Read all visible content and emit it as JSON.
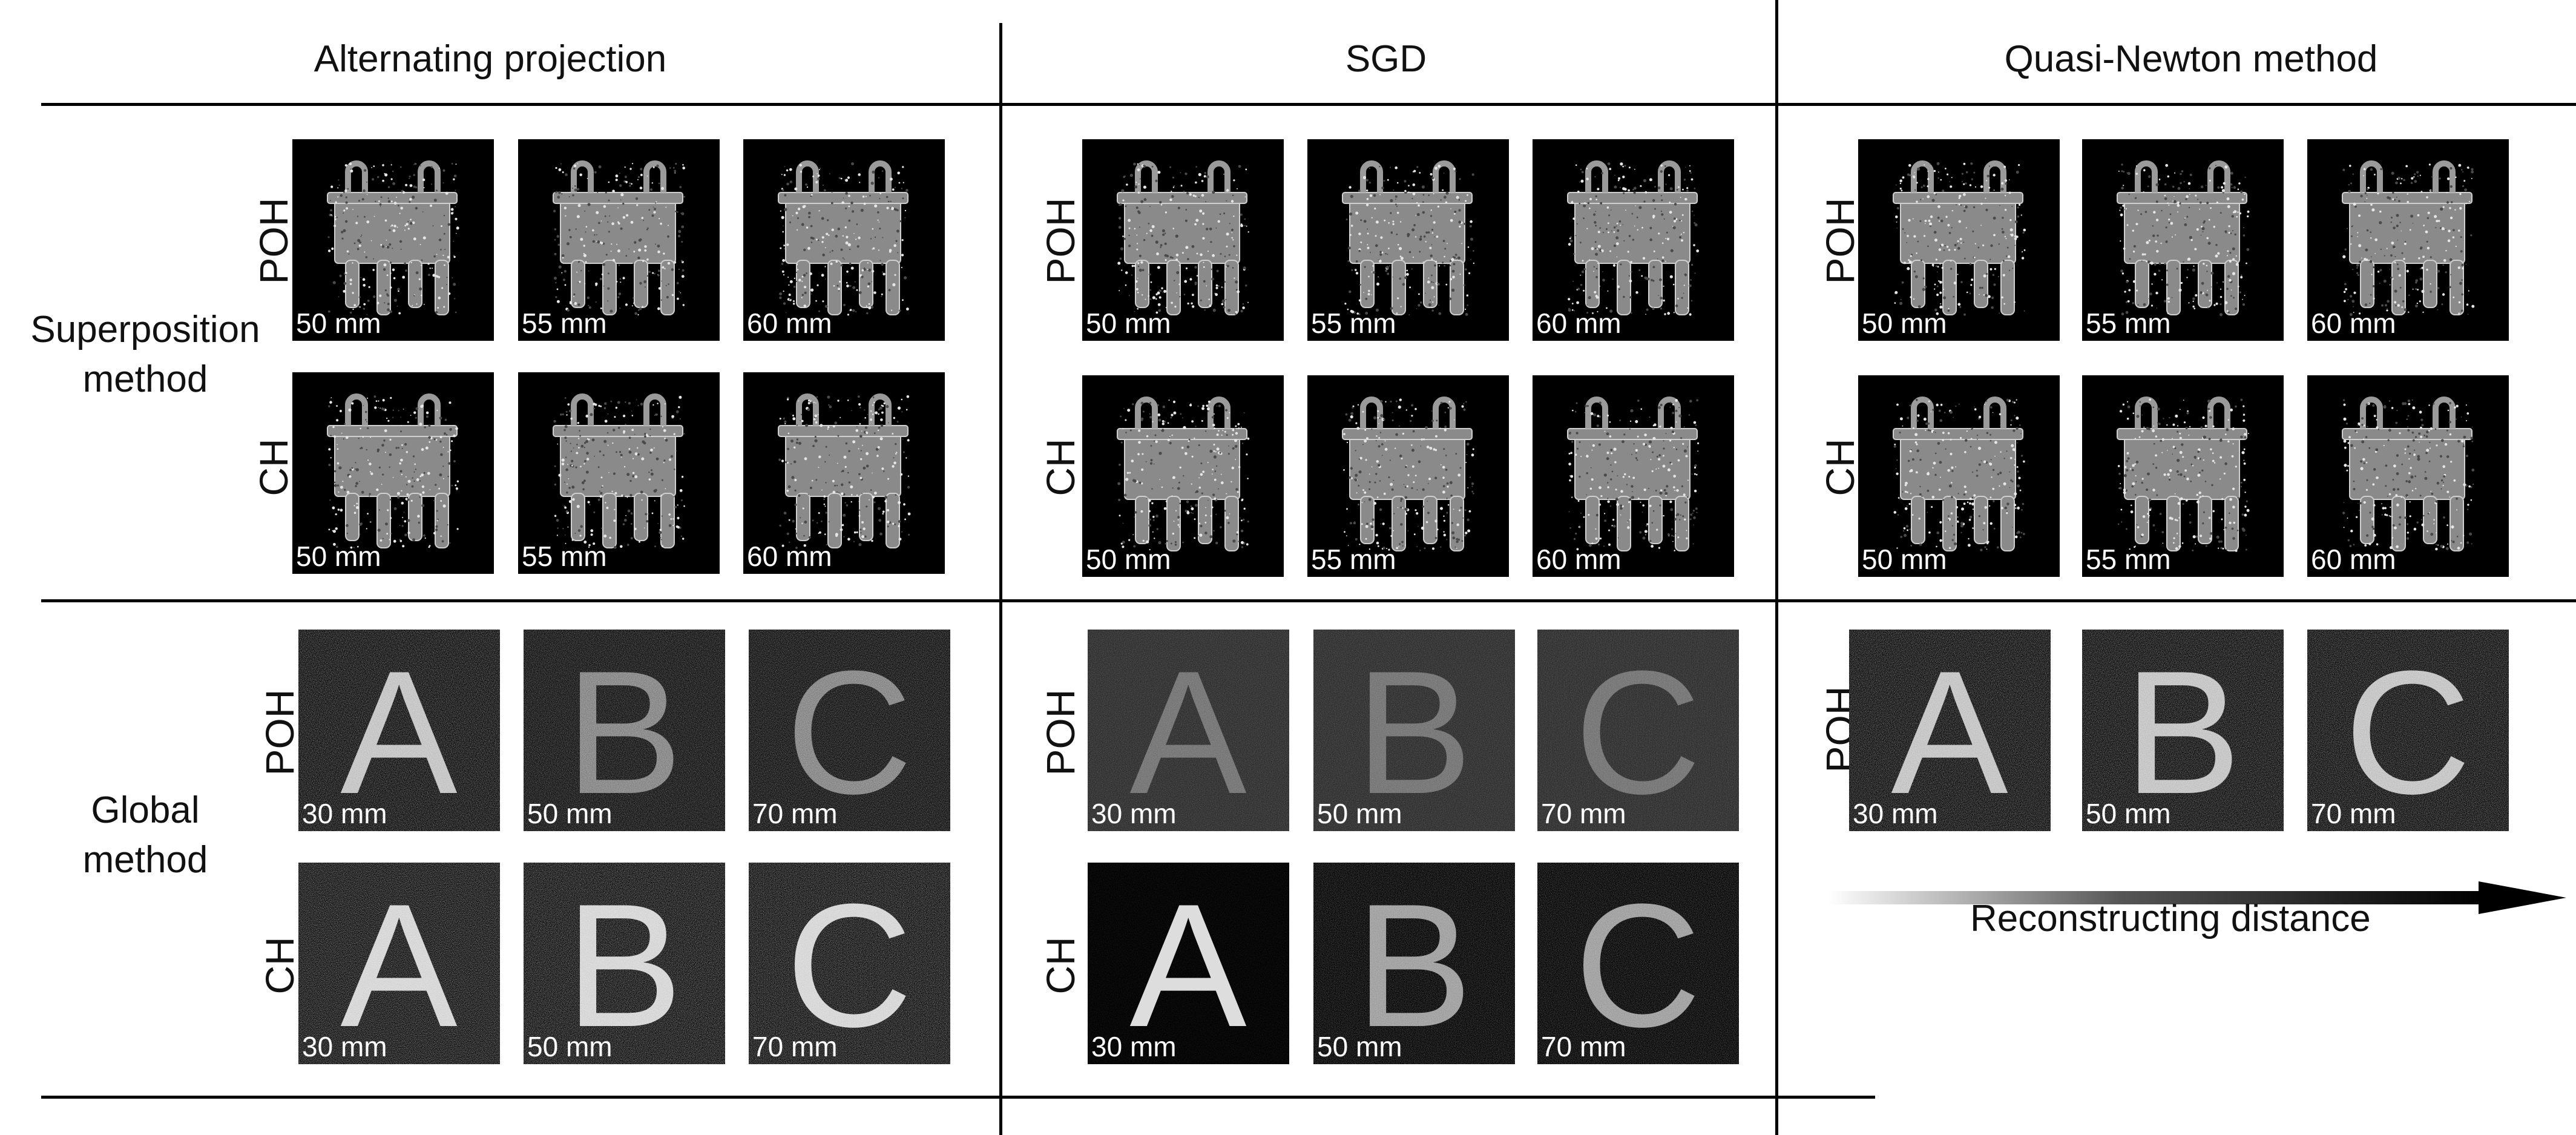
{
  "columns": [
    {
      "title": "Alternating projection"
    },
    {
      "title": "SGD"
    },
    {
      "title": "Quasi-Newton method"
    }
  ],
  "rows": [
    {
      "title": "Superposition\nmethod"
    },
    {
      "title": "Global\nmethod"
    }
  ],
  "labels": {
    "poh": "POH",
    "ch": "CH"
  },
  "distances": {
    "superposition": [
      "50 mm",
      "55 mm",
      "60 mm"
    ],
    "global": [
      "30 mm",
      "50 mm",
      "70 mm"
    ]
  },
  "letters": [
    "A",
    "B",
    "C"
  ],
  "arrow": {
    "label": "Reconstructing distance"
  }
}
